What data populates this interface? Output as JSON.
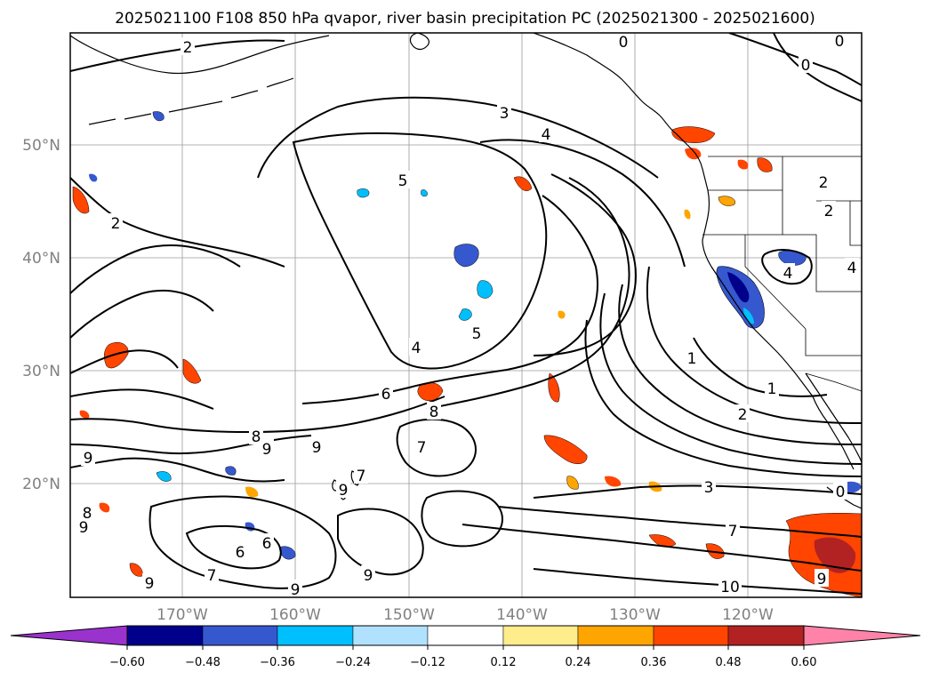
{
  "title": "2025021100 F108 850 hPa qvapor, river basin precipitation PC (2025021300 - 2025021600)",
  "axes": {
    "lat_ticks": [
      "50°N",
      "40°N",
      "30°N",
      "20°N"
    ],
    "lon_ticks": [
      "170°W",
      "160°W",
      "150°W",
      "140°W",
      "130°W",
      "120°W"
    ]
  },
  "colorbar": {
    "ticks": [
      "−0.60",
      "−0.48",
      "−0.36",
      "−0.24",
      "−0.12",
      "0.12",
      "0.24",
      "0.36",
      "0.48",
      "0.60"
    ],
    "colors": [
      "#9a32cd",
      "#00008b",
      "#3658cf",
      "#00bfff",
      "#b0e2ff",
      "#ffffff",
      "#ffec8b",
      "#ffa500",
      "#ff4500",
      "#b22222",
      "#ff83a8"
    ]
  },
  "contour_labels": [
    "2",
    "0",
    "0",
    "0",
    "3",
    "4",
    "5",
    "2",
    "2",
    "2",
    "4",
    "4",
    "5",
    "4",
    "6",
    "8",
    "7",
    "1",
    "1",
    "2",
    "3",
    "7",
    "10",
    "8",
    "9",
    "9",
    "9",
    "9",
    "7",
    "9",
    "8",
    "6",
    "6",
    "7",
    "9",
    "9",
    "9",
    "9",
    "0"
  ],
  "precip_regions": [
    {
      "sign": "negative",
      "level": "-0.36"
    },
    {
      "sign": "negative",
      "level": "-0.48"
    },
    {
      "sign": "positive",
      "level": "0.36"
    },
    {
      "sign": "positive",
      "level": "0.48"
    }
  ]
}
